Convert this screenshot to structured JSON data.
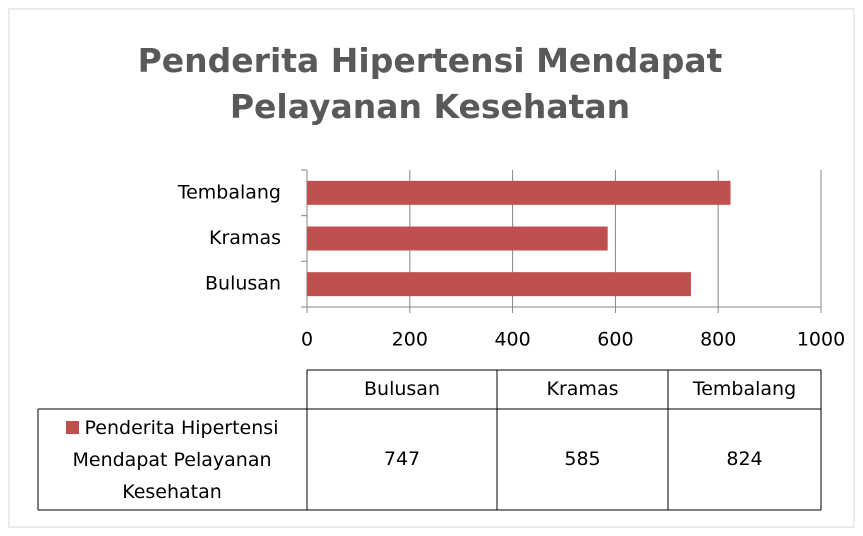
{
  "chart_data": {
    "type": "bar",
    "horizontal": true,
    "title": "Penderita Hipertensi Mendapat Pelayanan Kesehatan",
    "categories": [
      "Bulusan",
      "Kramas",
      "Tembalang"
    ],
    "series": [
      {
        "name": "Penderita Hipertensi Mendapat Pelayanan Kesehatan",
        "color": "#c0504d",
        "values": [
          747,
          585,
          824
        ]
      }
    ],
    "xlim": [
      0,
      1000
    ],
    "xticks": [
      0,
      200,
      400,
      600,
      800,
      1000
    ],
    "grid": true,
    "data_table": true
  }
}
